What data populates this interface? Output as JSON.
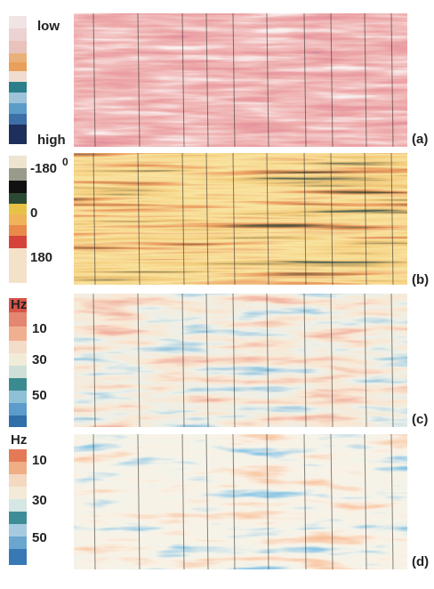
{
  "panels": [
    {
      "panel_label": "(a)",
      "scale_labels": [
        "low",
        "high"
      ]
    },
    {
      "panel_label": "(b)",
      "scale_labels": [
        "-180",
        "0",
        "180"
      ],
      "unit": "0"
    },
    {
      "panel_label": "(c)",
      "unit": "Hz",
      "scale_labels": [
        "10",
        "30",
        "50"
      ]
    },
    {
      "panel_label": "(d)",
      "unit": "Hz",
      "scale_labels": [
        "10",
        "30",
        "50"
      ]
    }
  ]
}
